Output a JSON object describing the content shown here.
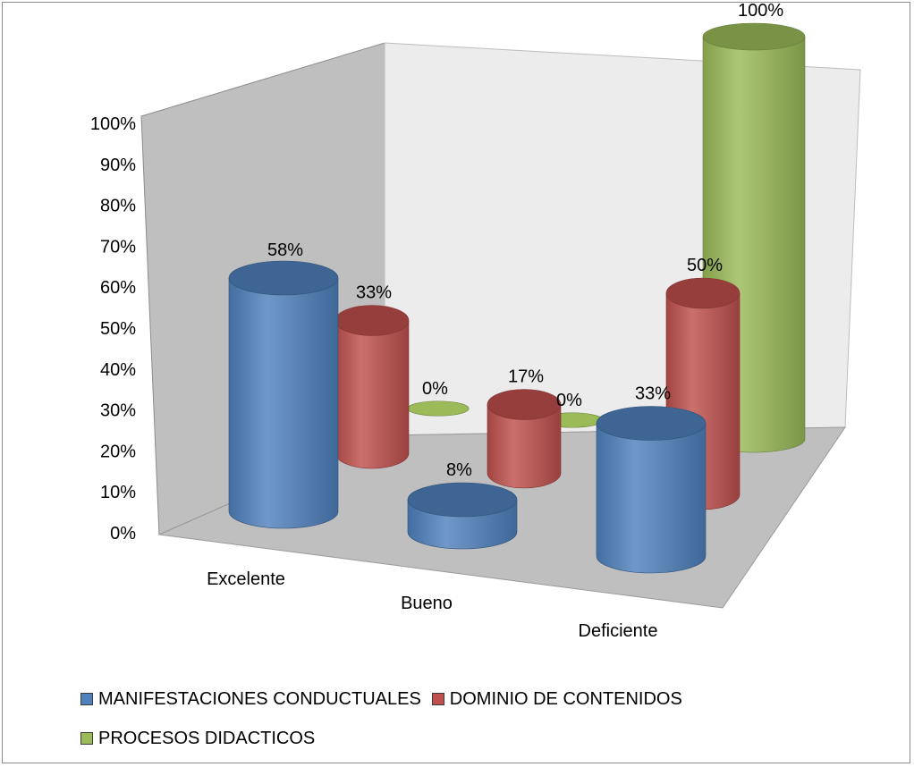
{
  "chart_data": {
    "type": "bar",
    "style": "3d-cylinder",
    "categories": [
      "Excelente",
      "Bueno",
      "Deficiente"
    ],
    "series": [
      {
        "name": "MANIFESTACIONES CONDUCTUALES",
        "color": "#4f81bd",
        "values": [
          58,
          8,
          33
        ],
        "labels": [
          "58%",
          "8%",
          "33%"
        ]
      },
      {
        "name": "DOMINIO DE CONTENIDOS",
        "color": "#c0504d",
        "values": [
          33,
          17,
          50
        ],
        "labels": [
          "33%",
          "17%",
          "50%"
        ]
      },
      {
        "name": "PROCESOS DIDACTICOS",
        "color": "#9bbb59",
        "values": [
          0,
          0,
          100
        ],
        "labels": [
          "0%",
          "0%",
          "100%"
        ]
      }
    ],
    "yticks": [
      "0%",
      "10%",
      "20%",
      "30%",
      "40%",
      "50%",
      "60%",
      "70%",
      "80%",
      "90%",
      "100%"
    ],
    "ylim": [
      0,
      100
    ],
    "legend_position": "bottom",
    "grid": false
  }
}
